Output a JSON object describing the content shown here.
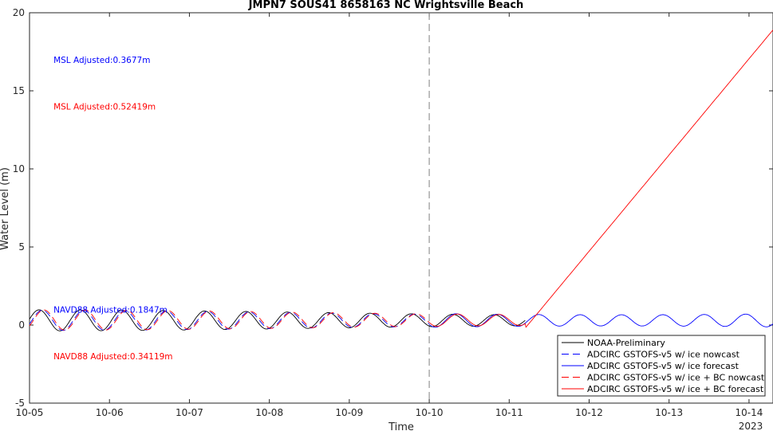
{
  "chart_data": {
    "type": "line",
    "title": "JMPN7 SOUS41 8658163 NC Wrightsville Beach",
    "xlabel": "Time",
    "ylabel": "Water Level (m)",
    "ylim": [
      -5,
      20
    ],
    "xlim": [
      0,
      9.3
    ],
    "grid": false,
    "legend_position": "bottom-right",
    "x_ticks": [
      {
        "x": 0,
        "label": "10-05"
      },
      {
        "x": 1,
        "label": "10-06"
      },
      {
        "x": 2,
        "label": "10-07"
      },
      {
        "x": 3,
        "label": "10-08"
      },
      {
        "x": 4,
        "label": "10-09"
      },
      {
        "x": 5,
        "label": "10-10"
      },
      {
        "x": 6,
        "label": "10-11"
      },
      {
        "x": 7,
        "label": "10-12"
      },
      {
        "x": 8,
        "label": "10-13"
      },
      {
        "x": 9,
        "label": "10-14"
      }
    ],
    "x_year_label": "2023",
    "y_ticks": [
      -5,
      0,
      5,
      10,
      15,
      20
    ],
    "vline_x": 5,
    "colors": {
      "black": "#000000",
      "blue": "#0000ff",
      "red": "#ff0000",
      "dash_gray": "#808080"
    },
    "series": [
      {
        "name": "NOAA-Preliminary",
        "color": "#000000",
        "dash": "solid",
        "kind": "tide",
        "x_start": 0,
        "x_end": 6.2,
        "amp": 0.5,
        "offset": 0.3,
        "phase": 0.0
      },
      {
        "name": "ADCIRC GSTOFS-v5 w/ ice nowcast",
        "color": "#0000ff",
        "dash": "dashed",
        "kind": "tide",
        "x_start": 0,
        "x_end": 5.0,
        "amp": 0.48,
        "offset": 0.3,
        "phase": 0.04
      },
      {
        "name": "ADCIRC GSTOFS-v5 w/ ice forecast",
        "color": "#0000ff",
        "dash": "solid",
        "kind": "tide",
        "x_start": 5.0,
        "x_end": 9.3,
        "amp": 0.55,
        "offset": 0.3,
        "phase": 0.04
      },
      {
        "name": "ADCIRC GSTOFS-v5 w/ ice + BC nowcast",
        "color": "#ff0000",
        "dash": "dashed",
        "kind": "tide",
        "x_start": 0,
        "x_end": 5.0,
        "amp": 0.48,
        "offset": 0.32,
        "phase": 0.06
      },
      {
        "name": "ADCIRC GSTOFS-v5 w/ ice + BC forecast",
        "color": "#ff0000",
        "dash": "solid",
        "kind": "tide_then_ramp",
        "x_start": 5.0,
        "x_end": 9.3,
        "amp": 0.5,
        "offset": 0.32,
        "phase": 0.06,
        "ramp_start_x": 6.2,
        "ramp_start_y": -0.2,
        "ramp_end_x": 9.3,
        "ramp_end_y": 18.9
      }
    ],
    "tide_period_days": 0.5175,
    "annotations": [
      {
        "text": "MSL Adjusted:0.3677m",
        "color": "#0000ff",
        "x": 0.3,
        "y": 17.0
      },
      {
        "text": "MSL Adjusted:0.52419m",
        "color": "#ff0000",
        "x": 0.3,
        "y": 14.0
      },
      {
        "text": "NAVD88 Adjusted:0.1847m",
        "color": "#0000ff",
        "x": 0.3,
        "y": 1.0
      },
      {
        "text": "NAVD88 Adjusted:0.34119m",
        "color": "#ff0000",
        "x": 0.3,
        "y": -2.0
      }
    ]
  }
}
